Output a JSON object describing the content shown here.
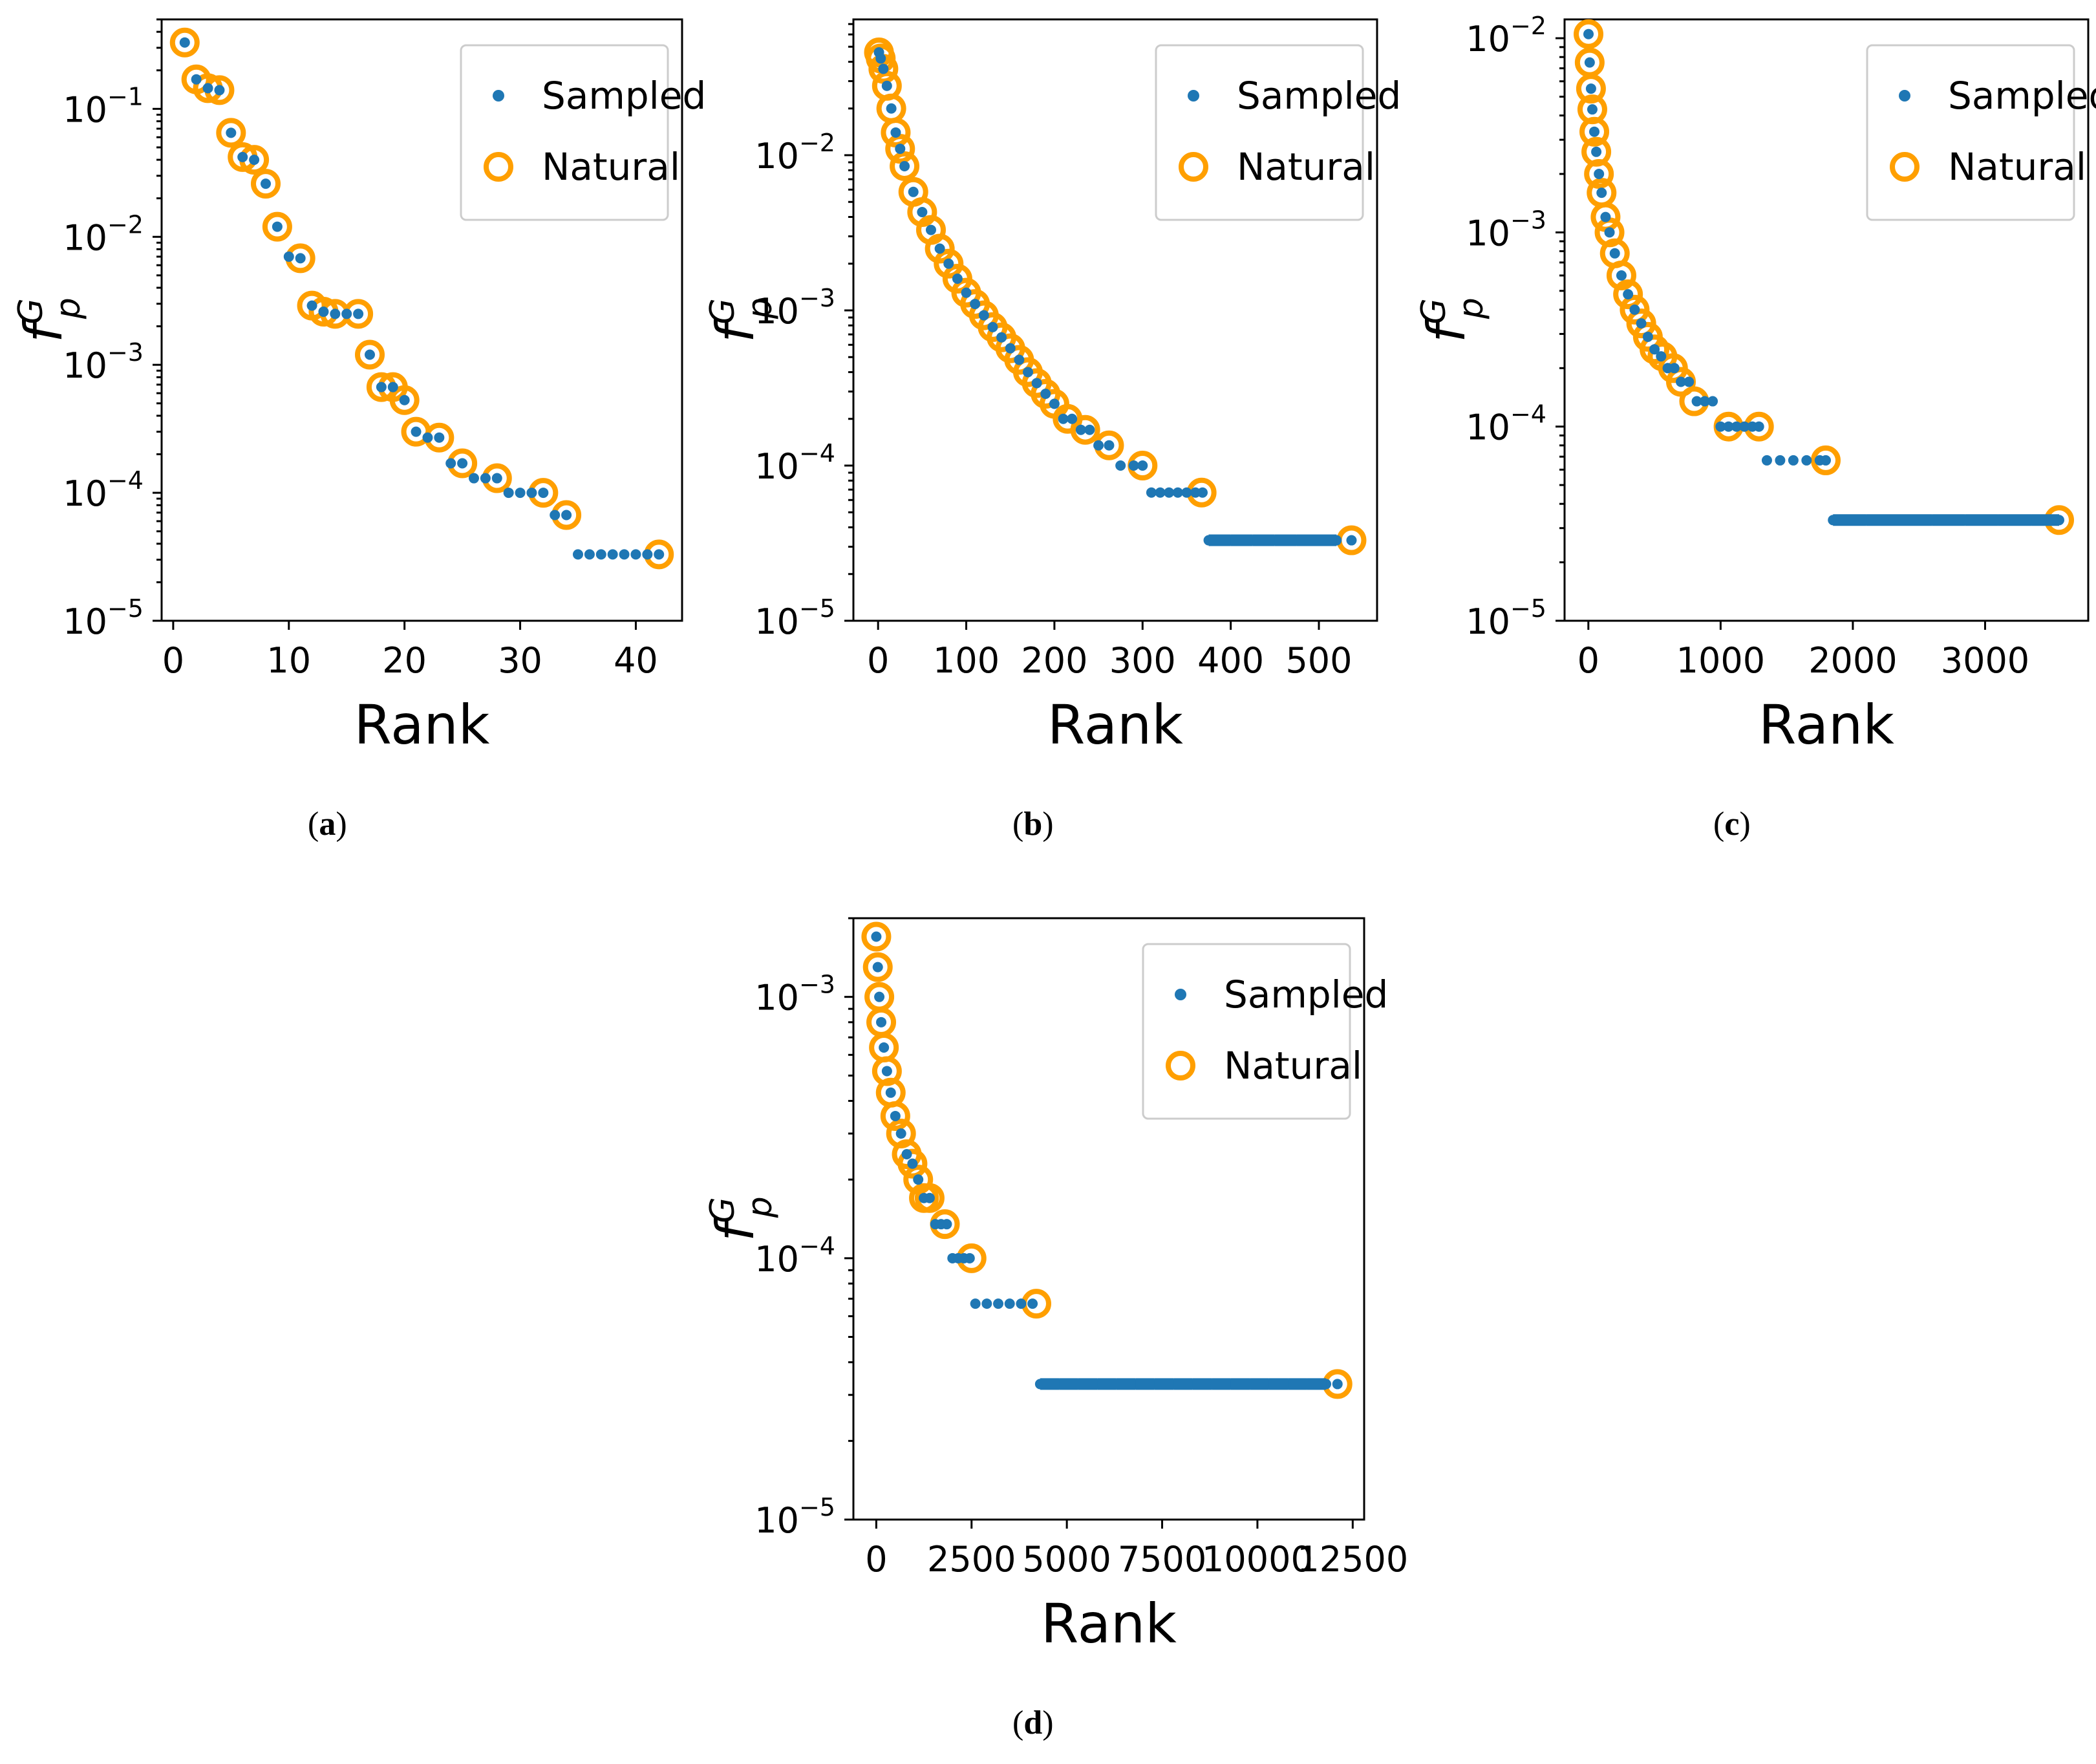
{
  "colors": {
    "sampled": "#1f77b4",
    "natural": "#ff9f00",
    "axis": "#000000",
    "legend_border": "#cccccc"
  },
  "chart_data": [
    {
      "id": "a",
      "type": "scatter",
      "caption": "a",
      "xlabel": "Rank",
      "ylabel": "f",
      "ylabel_sup": "G",
      "ylabel_sub": "p",
      "yscale": "log",
      "xlim": [
        -1,
        44
      ],
      "ylim": [
        1e-05,
        0.5
      ],
      "xticks": [
        0,
        10,
        20,
        30,
        40
      ],
      "xtick_labels": [
        "0",
        "10",
        "20",
        "30",
        "40"
      ],
      "yticks": [
        1e-05,
        0.0001,
        0.001,
        0.01,
        0.1
      ],
      "ytick_labels": [
        [
          "10",
          "−5"
        ],
        [
          "10",
          "−4"
        ],
        [
          "10",
          "−3"
        ],
        [
          "10",
          "−2"
        ],
        [
          "10",
          "−1"
        ]
      ],
      "legend": {
        "position": "upper right",
        "entries": [
          "Sampled",
          "Natural"
        ]
      },
      "series": [
        {
          "name": "Sampled",
          "marker": "dot",
          "x": [
            1,
            2,
            3,
            4,
            5,
            6,
            7,
            8,
            9,
            10,
            11,
            12,
            13,
            14,
            15,
            16,
            17,
            18,
            19,
            20,
            21,
            22,
            23,
            24,
            25,
            26,
            27,
            28,
            29,
            30,
            31,
            32,
            33,
            34,
            35,
            36,
            37,
            38,
            39,
            40,
            41,
            42
          ],
          "y": [
            0.33,
            0.17,
            0.145,
            0.14,
            0.065,
            0.042,
            0.04,
            0.026,
            0.012,
            0.007,
            0.0068,
            0.0029,
            0.0026,
            0.0025,
            0.0025,
            0.0025,
            0.0012,
            0.00067,
            0.00067,
            0.00053,
            0.0003,
            0.00027,
            0.00027,
            0.00017,
            0.00017,
            0.00013,
            0.00013,
            0.00013,
            0.0001,
            0.0001,
            0.0001,
            0.0001,
            6.7e-05,
            6.7e-05,
            3.3e-05,
            3.3e-05,
            3.3e-05,
            3.3e-05,
            3.3e-05,
            3.3e-05,
            3.3e-05,
            3.3e-05
          ]
        },
        {
          "name": "Natural",
          "marker": "ring",
          "x": [
            1,
            2,
            3,
            4,
            5,
            6,
            7,
            8,
            9,
            11,
            12,
            13,
            14,
            16,
            17,
            18,
            19,
            20,
            21,
            23,
            25,
            28,
            32,
            34,
            42
          ],
          "y": [
            0.33,
            0.17,
            0.145,
            0.14,
            0.065,
            0.042,
            0.04,
            0.026,
            0.012,
            0.0068,
            0.0029,
            0.0026,
            0.0025,
            0.0025,
            0.0012,
            0.00067,
            0.00067,
            0.00053,
            0.0003,
            0.00027,
            0.00017,
            0.00013,
            0.0001,
            6.7e-05,
            3.3e-05
          ]
        }
      ]
    },
    {
      "id": "b",
      "type": "scatter",
      "caption": "b",
      "xlabel": "Rank",
      "ylabel": "f",
      "ylabel_sup": "G",
      "ylabel_sub": "p",
      "yscale": "log",
      "xlim": [
        -28,
        566
      ],
      "ylim": [
        1e-05,
        0.075
      ],
      "xticks": [
        0,
        100,
        200,
        300,
        400,
        500
      ],
      "xtick_labels": [
        "0",
        "100",
        "200",
        "300",
        "400",
        "500"
      ],
      "yticks": [
        1e-05,
        0.0001,
        0.001,
        0.01
      ],
      "ytick_labels": [
        [
          "10",
          "−5"
        ],
        [
          "10",
          "−4"
        ],
        [
          "10",
          "−3"
        ],
        [
          "10",
          "−2"
        ]
      ],
      "legend": {
        "position": "upper right",
        "entries": [
          "Sampled",
          "Natural"
        ]
      },
      "series": [
        {
          "name": "Sampled",
          "marker": "dot",
          "x": [
            1,
            3,
            6,
            10,
            15,
            20,
            25,
            30,
            40,
            50,
            60,
            70,
            80,
            90,
            100,
            110,
            120,
            130,
            140,
            150,
            160,
            170,
            180,
            190,
            200,
            210,
            220,
            230,
            240,
            250,
            262,
            275,
            290,
            300,
            310,
            320,
            330,
            340,
            350,
            360,
            368,
            375,
            400,
            425,
            450,
            475,
            500,
            520,
            537
          ],
          "y": [
            0.046,
            0.042,
            0.036,
            0.028,
            0.02,
            0.014,
            0.011,
            0.0085,
            0.0058,
            0.0043,
            0.0033,
            0.0025,
            0.002,
            0.0016,
            0.0013,
            0.0011,
            0.00093,
            0.00078,
            0.00067,
            0.00057,
            0.00048,
            0.0004,
            0.00034,
            0.00029,
            0.00025,
            0.0002,
            0.0002,
            0.00017,
            0.00017,
            0.000135,
            0.000135,
            0.0001,
            0.0001,
            0.0001,
            6.7e-05,
            6.7e-05,
            6.7e-05,
            6.7e-05,
            6.7e-05,
            6.7e-05,
            6.7e-05,
            3.3e-05,
            3.3e-05,
            3.3e-05,
            3.3e-05,
            3.3e-05,
            3.3e-05,
            3.3e-05,
            3.3e-05
          ]
        },
        {
          "name": "Natural",
          "marker": "ring",
          "x": [
            1,
            3,
            6,
            10,
            15,
            20,
            25,
            30,
            40,
            50,
            60,
            70,
            80,
            90,
            100,
            110,
            120,
            130,
            140,
            150,
            160,
            170,
            180,
            190,
            200,
            215,
            235,
            262,
            300,
            367,
            537
          ],
          "y": [
            0.046,
            0.042,
            0.036,
            0.028,
            0.02,
            0.014,
            0.011,
            0.0085,
            0.0058,
            0.0043,
            0.0033,
            0.0025,
            0.002,
            0.0016,
            0.0013,
            0.0011,
            0.00093,
            0.00078,
            0.00067,
            0.00057,
            0.00048,
            0.0004,
            0.00034,
            0.00029,
            0.00025,
            0.0002,
            0.00017,
            0.000135,
            0.0001,
            6.7e-05,
            3.3e-05
          ]
        }
      ]
    },
    {
      "id": "c",
      "type": "scatter",
      "caption": "c",
      "xlabel": "Rank",
      "ylabel": "f",
      "ylabel_sup": "G",
      "ylabel_sub": "p",
      "yscale": "log",
      "xlim": [
        -180,
        3780
      ],
      "ylim": [
        1e-05,
        0.0125
      ],
      "xticks": [
        0,
        1000,
        2000,
        3000
      ],
      "xtick_labels": [
        "0",
        "1000",
        "2000",
        "3000"
      ],
      "yticks": [
        1e-05,
        0.0001,
        0.001,
        0.01
      ],
      "ytick_labels": [
        [
          "10",
          "−5"
        ],
        [
          "10",
          "−4"
        ],
        [
          "10",
          "−3"
        ],
        [
          "10",
          "−2"
        ]
      ],
      "legend": {
        "position": "upper right",
        "entries": [
          "Sampled",
          "Natural"
        ]
      },
      "series": [
        {
          "name": "Sampled",
          "marker": "dot",
          "x": [
            1,
            10,
            20,
            30,
            45,
            60,
            80,
            100,
            130,
            160,
            200,
            250,
            300,
            350,
            400,
            450,
            500,
            550,
            600,
            650,
            700,
            760,
            820,
            880,
            940,
            1000,
            1060,
            1120,
            1180,
            1240,
            1290,
            1350,
            1450,
            1550,
            1650,
            1750,
            1795,
            1850,
            2100,
            2350,
            2600,
            2850,
            3100,
            3350,
            3560
          ],
          "y": [
            0.0105,
            0.0075,
            0.0055,
            0.0043,
            0.0033,
            0.0026,
            0.002,
            0.0016,
            0.0012,
            0.001,
            0.00078,
            0.0006,
            0.00048,
            0.0004,
            0.00034,
            0.00029,
            0.00025,
            0.00023,
            0.0002,
            0.0002,
            0.00017,
            0.00017,
            0.000135,
            0.000135,
            0.000135,
            0.0001,
            0.0001,
            0.0001,
            0.0001,
            0.0001,
            0.0001,
            6.7e-05,
            6.7e-05,
            6.7e-05,
            6.7e-05,
            6.7e-05,
            6.7e-05,
            3.3e-05,
            3.3e-05,
            3.3e-05,
            3.3e-05,
            3.3e-05,
            3.3e-05,
            3.3e-05,
            3.3e-05
          ]
        },
        {
          "name": "Natural",
          "marker": "ring",
          "x": [
            1,
            10,
            20,
            30,
            45,
            60,
            80,
            100,
            130,
            160,
            200,
            250,
            300,
            350,
            400,
            450,
            500,
            560,
            640,
            700,
            800,
            1060,
            1290,
            1795,
            3560
          ],
          "y": [
            0.0105,
            0.0075,
            0.0055,
            0.0043,
            0.0033,
            0.0026,
            0.002,
            0.0016,
            0.0012,
            0.001,
            0.00078,
            0.0006,
            0.00048,
            0.0004,
            0.00034,
            0.00029,
            0.00025,
            0.00023,
            0.0002,
            0.00017,
            0.000135,
            0.0001,
            0.0001,
            6.7e-05,
            3.3e-05
          ]
        }
      ]
    },
    {
      "id": "d",
      "type": "scatter",
      "caption": "d",
      "xlabel": "Rank",
      "ylabel": "f",
      "ylabel_sup": "G",
      "ylabel_sub": "p",
      "yscale": "log",
      "xlim": [
        -600,
        12800
      ],
      "ylim": [
        1e-05,
        0.002
      ],
      "xticks": [
        0,
        2500,
        5000,
        7500,
        10000,
        12500
      ],
      "xtick_labels": [
        "0",
        "2500",
        "5000",
        "7500",
        "10000",
        "12500"
      ],
      "yticks": [
        1e-05,
        0.0001,
        0.001
      ],
      "ytick_labels": [
        [
          "10",
          "−5"
        ],
        [
          "10",
          "−4"
        ],
        [
          "10",
          "−3"
        ]
      ],
      "legend": {
        "position": "upper right",
        "entries": [
          "Sampled",
          "Natural"
        ]
      },
      "series": [
        {
          "name": "Sampled",
          "marker": "dot",
          "x": [
            1,
            40,
            80,
            130,
            200,
            280,
            380,
            500,
            650,
            800,
            950,
            1100,
            1250,
            1400,
            1550,
            1700,
            1850,
            2000,
            2150,
            2300,
            2450,
            2600,
            2900,
            3200,
            3500,
            3800,
            4100,
            4300,
            4800,
            5300,
            5800,
            6300,
            6800,
            7300,
            7800,
            8300,
            8800,
            9300,
            9800,
            10300,
            10800,
            11300,
            11800,
            12100
          ],
          "y": [
            0.0017,
            0.0013,
            0.001,
            0.0008,
            0.00064,
            0.00052,
            0.00043,
            0.00035,
            0.0003,
            0.00025,
            0.00023,
            0.0002,
            0.00017,
            0.00017,
            0.000135,
            0.000135,
            0.000135,
            0.0001,
            0.0001,
            0.0001,
            0.0001,
            6.7e-05,
            6.7e-05,
            6.7e-05,
            6.7e-05,
            6.7e-05,
            6.7e-05,
            3.3e-05,
            3.3e-05,
            3.3e-05,
            3.3e-05,
            3.3e-05,
            3.3e-05,
            3.3e-05,
            3.3e-05,
            3.3e-05,
            3.3e-05,
            3.3e-05,
            3.3e-05,
            3.3e-05,
            3.3e-05,
            3.3e-05,
            3.3e-05,
            3.3e-05
          ]
        },
        {
          "name": "Natural",
          "marker": "ring",
          "x": [
            1,
            40,
            80,
            130,
            200,
            280,
            380,
            500,
            650,
            800,
            950,
            1100,
            1250,
            1400,
            1800,
            2500,
            4200,
            12100
          ],
          "y": [
            0.0017,
            0.0013,
            0.001,
            0.0008,
            0.00064,
            0.00052,
            0.00043,
            0.00035,
            0.0003,
            0.00025,
            0.00023,
            0.0002,
            0.00017,
            0.00017,
            0.000135,
            0.0001,
            6.7e-05,
            3.3e-05
          ]
        }
      ]
    }
  ]
}
